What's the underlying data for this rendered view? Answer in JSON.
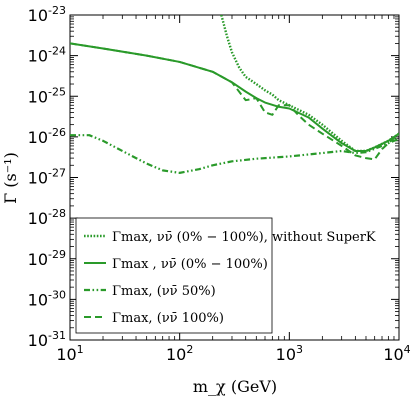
{
  "chart_data": {
    "type": "line",
    "x_scale": "log",
    "y_scale": "log",
    "xlim": [
      10,
      10000
    ],
    "ylim": [
      1e-31,
      1e-23
    ],
    "xlabel": "m_χ (GeV)",
    "ylabel": "Γ (s⁻¹)",
    "x_ticks": [
      {
        "base": "10",
        "exp": "1",
        "value": 10
      },
      {
        "base": "10",
        "exp": "2",
        "value": 100
      },
      {
        "base": "10",
        "exp": "3",
        "value": 1000
      },
      {
        "base": "10",
        "exp": "4",
        "value": 10000
      }
    ],
    "y_ticks": [
      {
        "base": "10",
        "exp": "-23",
        "value": 1e-23
      },
      {
        "base": "10",
        "exp": "-24",
        "value": 1e-24
      },
      {
        "base": "10",
        "exp": "-25",
        "value": 1e-25
      },
      {
        "base": "10",
        "exp": "-26",
        "value": 1e-26
      },
      {
        "base": "10",
        "exp": "-27",
        "value": 1e-27
      },
      {
        "base": "10",
        "exp": "-28",
        "value": 1e-28
      },
      {
        "base": "10",
        "exp": "-29",
        "value": 1e-29
      },
      {
        "base": "10",
        "exp": "-30",
        "value": 1e-30
      },
      {
        "base": "10",
        "exp": "-31",
        "value": 1e-31
      }
    ],
    "color": "#2a9a2a",
    "legend_position": "bottom-left",
    "series": [
      {
        "name": "Γmax, νν̄ (0% − 100%), without SuperK",
        "style": "dotted",
        "points": [
          [
            240,
            1e-23
          ],
          [
            270,
            3e-24
          ],
          [
            300,
            1.2e-24
          ],
          [
            350,
            5e-25
          ],
          [
            400,
            3e-25
          ],
          [
            500,
            2e-25
          ],
          [
            600,
            1.4e-25
          ],
          [
            700,
            1.1e-25
          ],
          [
            800,
            8e-26
          ],
          [
            1000,
            6e-26
          ],
          [
            1500,
            3.5e-26
          ],
          [
            2000,
            2e-26
          ],
          [
            3000,
            8e-27
          ],
          [
            4000,
            4.5e-27
          ],
          [
            5000,
            4.5e-27
          ],
          [
            6000,
            5.5e-27
          ],
          [
            8000,
            8e-27
          ],
          [
            10000,
            1.2e-26
          ]
        ]
      },
      {
        "name": "Γmax , νν̄ (0% − 100%)",
        "style": "solid",
        "points": [
          [
            10,
            2e-24
          ],
          [
            20,
            1.5e-24
          ],
          [
            50,
            1e-24
          ],
          [
            100,
            7e-25
          ],
          [
            200,
            4e-25
          ],
          [
            300,
            2.2e-25
          ],
          [
            400,
            1.3e-25
          ],
          [
            500,
            9e-26
          ],
          [
            600,
            7e-26
          ],
          [
            800,
            5.5e-26
          ],
          [
            1000,
            5e-26
          ],
          [
            1500,
            3e-26
          ],
          [
            2000,
            1.6e-26
          ],
          [
            3000,
            7e-27
          ],
          [
            4000,
            4.5e-27
          ],
          [
            5000,
            4.5e-27
          ],
          [
            6000,
            5.5e-27
          ],
          [
            8000,
            8e-27
          ],
          [
            10000,
            1.2e-26
          ]
        ]
      },
      {
        "name": "Γmax, (νν̄ 50%)",
        "style": "dash-dot-dot",
        "points": [
          [
            10,
            1.1e-26
          ],
          [
            15,
            1.1e-26
          ],
          [
            20,
            8e-27
          ],
          [
            30,
            4.5e-27
          ],
          [
            50,
            2.2e-27
          ],
          [
            70,
            1.5e-27
          ],
          [
            100,
            1.3e-27
          ],
          [
            150,
            1.6e-27
          ],
          [
            200,
            2e-27
          ],
          [
            300,
            2.5e-27
          ],
          [
            500,
            2.9e-27
          ],
          [
            1000,
            3.3e-27
          ],
          [
            2000,
            4e-27
          ],
          [
            3000,
            4.5e-27
          ],
          [
            4000,
            4e-27
          ],
          [
            5000,
            4.2e-27
          ],
          [
            7000,
            6e-27
          ],
          [
            10000,
            9e-27
          ]
        ]
      },
      {
        "name": "Γmax, (νν̄ 100%)",
        "style": "dashed",
        "points": [
          [
            10,
            2e-24
          ],
          [
            20,
            1.5e-24
          ],
          [
            50,
            1e-24
          ],
          [
            100,
            7e-25
          ],
          [
            200,
            4e-25
          ],
          [
            300,
            2.2e-25
          ],
          [
            400,
            8e-26
          ],
          [
            500,
            9e-26
          ],
          [
            600,
            4e-26
          ],
          [
            700,
            3.5e-26
          ],
          [
            800,
            6e-26
          ],
          [
            1000,
            6e-26
          ],
          [
            1200,
            3.5e-26
          ],
          [
            1500,
            2e-26
          ],
          [
            2000,
            1.2e-26
          ],
          [
            3000,
            6e-27
          ],
          [
            4000,
            3.5e-27
          ],
          [
            5000,
            3e-27
          ],
          [
            6000,
            2.8e-27
          ],
          [
            7000,
            5e-27
          ],
          [
            8000,
            7e-27
          ],
          [
            10000,
            1.2e-26
          ]
        ]
      }
    ]
  }
}
